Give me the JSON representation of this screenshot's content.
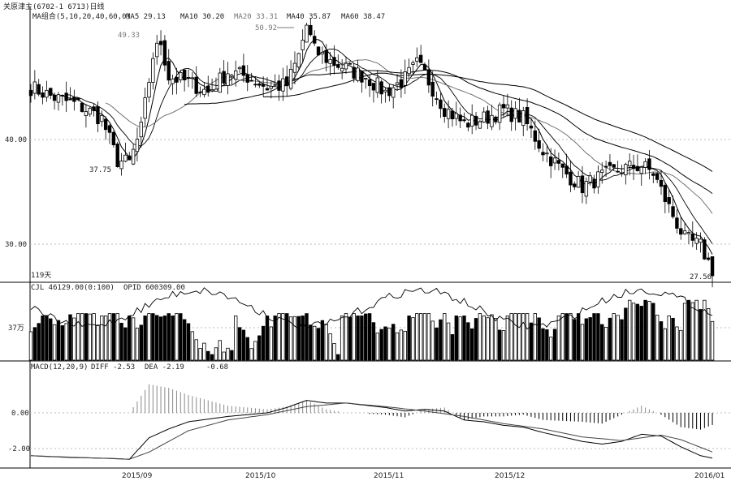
{
  "header": {
    "title": "关原津主(6702-1 6713)日线",
    "ma_group": "MA组合(5,10,20,40,60,0)",
    "ma5": "MA5 29.13",
    "ma10": "MA10 30.20",
    "ma20": "MA20 33.31",
    "ma40": "MA40 35.87",
    "ma60": "MA60 38.47"
  },
  "price_panel": {
    "y_ticks": [
      "40.00",
      "30.00"
    ],
    "period_label": "119天",
    "annotations": {
      "low_sep": "37.75",
      "high_sep": "49.33",
      "high_oct": "50.92",
      "low_end": "27.56"
    }
  },
  "volume_panel": {
    "title": "CJL 46129.00(0:100)",
    "opid": "OPID 600309.00",
    "y_tick": "37万"
  },
  "macd_panel": {
    "title": "MACD(12,20,9)",
    "diff": "DIFF -2.53",
    "dea": "DEA -2.19",
    "macd": "-0.68",
    "y_ticks": [
      "0.00",
      "-2.00"
    ]
  },
  "x_axis": {
    "labels": [
      "2015/09",
      "2015/10",
      "2015/11",
      "2015/12",
      "2016/01"
    ]
  },
  "chart_data": {
    "type": "candlestick",
    "price_axis": {
      "ticks": [
        40,
        30
      ],
      "range": [
        28.5,
        50.5
      ]
    },
    "price_path": [
      [
        0,
        45.0
      ],
      [
        6,
        44.0
      ],
      [
        12,
        43.3
      ],
      [
        18,
        42.0
      ],
      [
        22,
        38.0
      ],
      [
        25,
        37.75
      ],
      [
        28,
        41.0
      ],
      [
        31,
        48.0
      ],
      [
        33,
        49.33
      ],
      [
        35,
        46.0
      ],
      [
        40,
        45.5
      ],
      [
        45,
        44.5
      ],
      [
        50,
        46.5
      ],
      [
        55,
        46.0
      ],
      [
        60,
        45.0
      ],
      [
        65,
        45.2
      ],
      [
        68,
        48.0
      ],
      [
        70,
        50.92
      ],
      [
        72,
        48.5
      ],
      [
        76,
        47.5
      ],
      [
        80,
        46.8
      ],
      [
        85,
        46.0
      ],
      [
        90,
        44.5
      ],
      [
        95,
        45.8
      ],
      [
        98,
        47.2
      ],
      [
        100,
        46.2
      ],
      [
        105,
        43.0
      ],
      [
        110,
        41.5
      ],
      [
        115,
        42.0
      ],
      [
        120,
        42.8
      ],
      [
        125,
        42.0
      ],
      [
        130,
        39.0
      ],
      [
        135,
        37.0
      ],
      [
        140,
        35.5
      ],
      [
        145,
        36.5
      ],
      [
        150,
        37.2
      ],
      [
        155,
        37.5
      ],
      [
        158,
        36.8
      ],
      [
        162,
        33.5
      ],
      [
        166,
        30.5
      ],
      [
        170,
        29.8
      ],
      [
        173,
        27.56
      ]
    ],
    "macd_axis": {
      "ticks": [
        0,
        -2
      ],
      "range": [
        -3.0,
        1.6
      ]
    },
    "macd_path": [
      [
        0,
        -2.4
      ],
      [
        10,
        -2.5
      ],
      [
        20,
        -2.55
      ],
      [
        25,
        -2.6
      ],
      [
        30,
        -1.4
      ],
      [
        35,
        -0.9
      ],
      [
        40,
        -0.5
      ],
      [
        50,
        -0.2
      ],
      [
        60,
        0.0
      ],
      [
        65,
        0.3
      ],
      [
        70,
        0.7
      ],
      [
        75,
        0.55
      ],
      [
        80,
        0.55
      ],
      [
        90,
        0.3
      ],
      [
        95,
        0.1
      ],
      [
        100,
        0.2
      ],
      [
        105,
        0.1
      ],
      [
        110,
        -0.4
      ],
      [
        115,
        -0.5
      ],
      [
        120,
        -0.7
      ],
      [
        125,
        -0.8
      ],
      [
        130,
        -1.1
      ],
      [
        140,
        -1.6
      ],
      [
        145,
        -1.75
      ],
      [
        150,
        -1.6
      ],
      [
        155,
        -1.2
      ],
      [
        160,
        -1.3
      ],
      [
        165,
        -1.9
      ],
      [
        170,
        -2.4
      ],
      [
        173,
        -2.53
      ]
    ],
    "dea_path": [
      [
        0,
        -2.4
      ],
      [
        25,
        -2.6
      ],
      [
        30,
        -2.2
      ],
      [
        40,
        -1.0
      ],
      [
        50,
        -0.4
      ],
      [
        60,
        -0.1
      ],
      [
        70,
        0.35
      ],
      [
        80,
        0.55
      ],
      [
        90,
        0.35
      ],
      [
        100,
        0.1
      ],
      [
        110,
        -0.2
      ],
      [
        120,
        -0.6
      ],
      [
        130,
        -0.9
      ],
      [
        140,
        -1.35
      ],
      [
        150,
        -1.55
      ],
      [
        160,
        -1.25
      ],
      [
        165,
        -1.5
      ],
      [
        173,
        -2.19
      ]
    ]
  }
}
